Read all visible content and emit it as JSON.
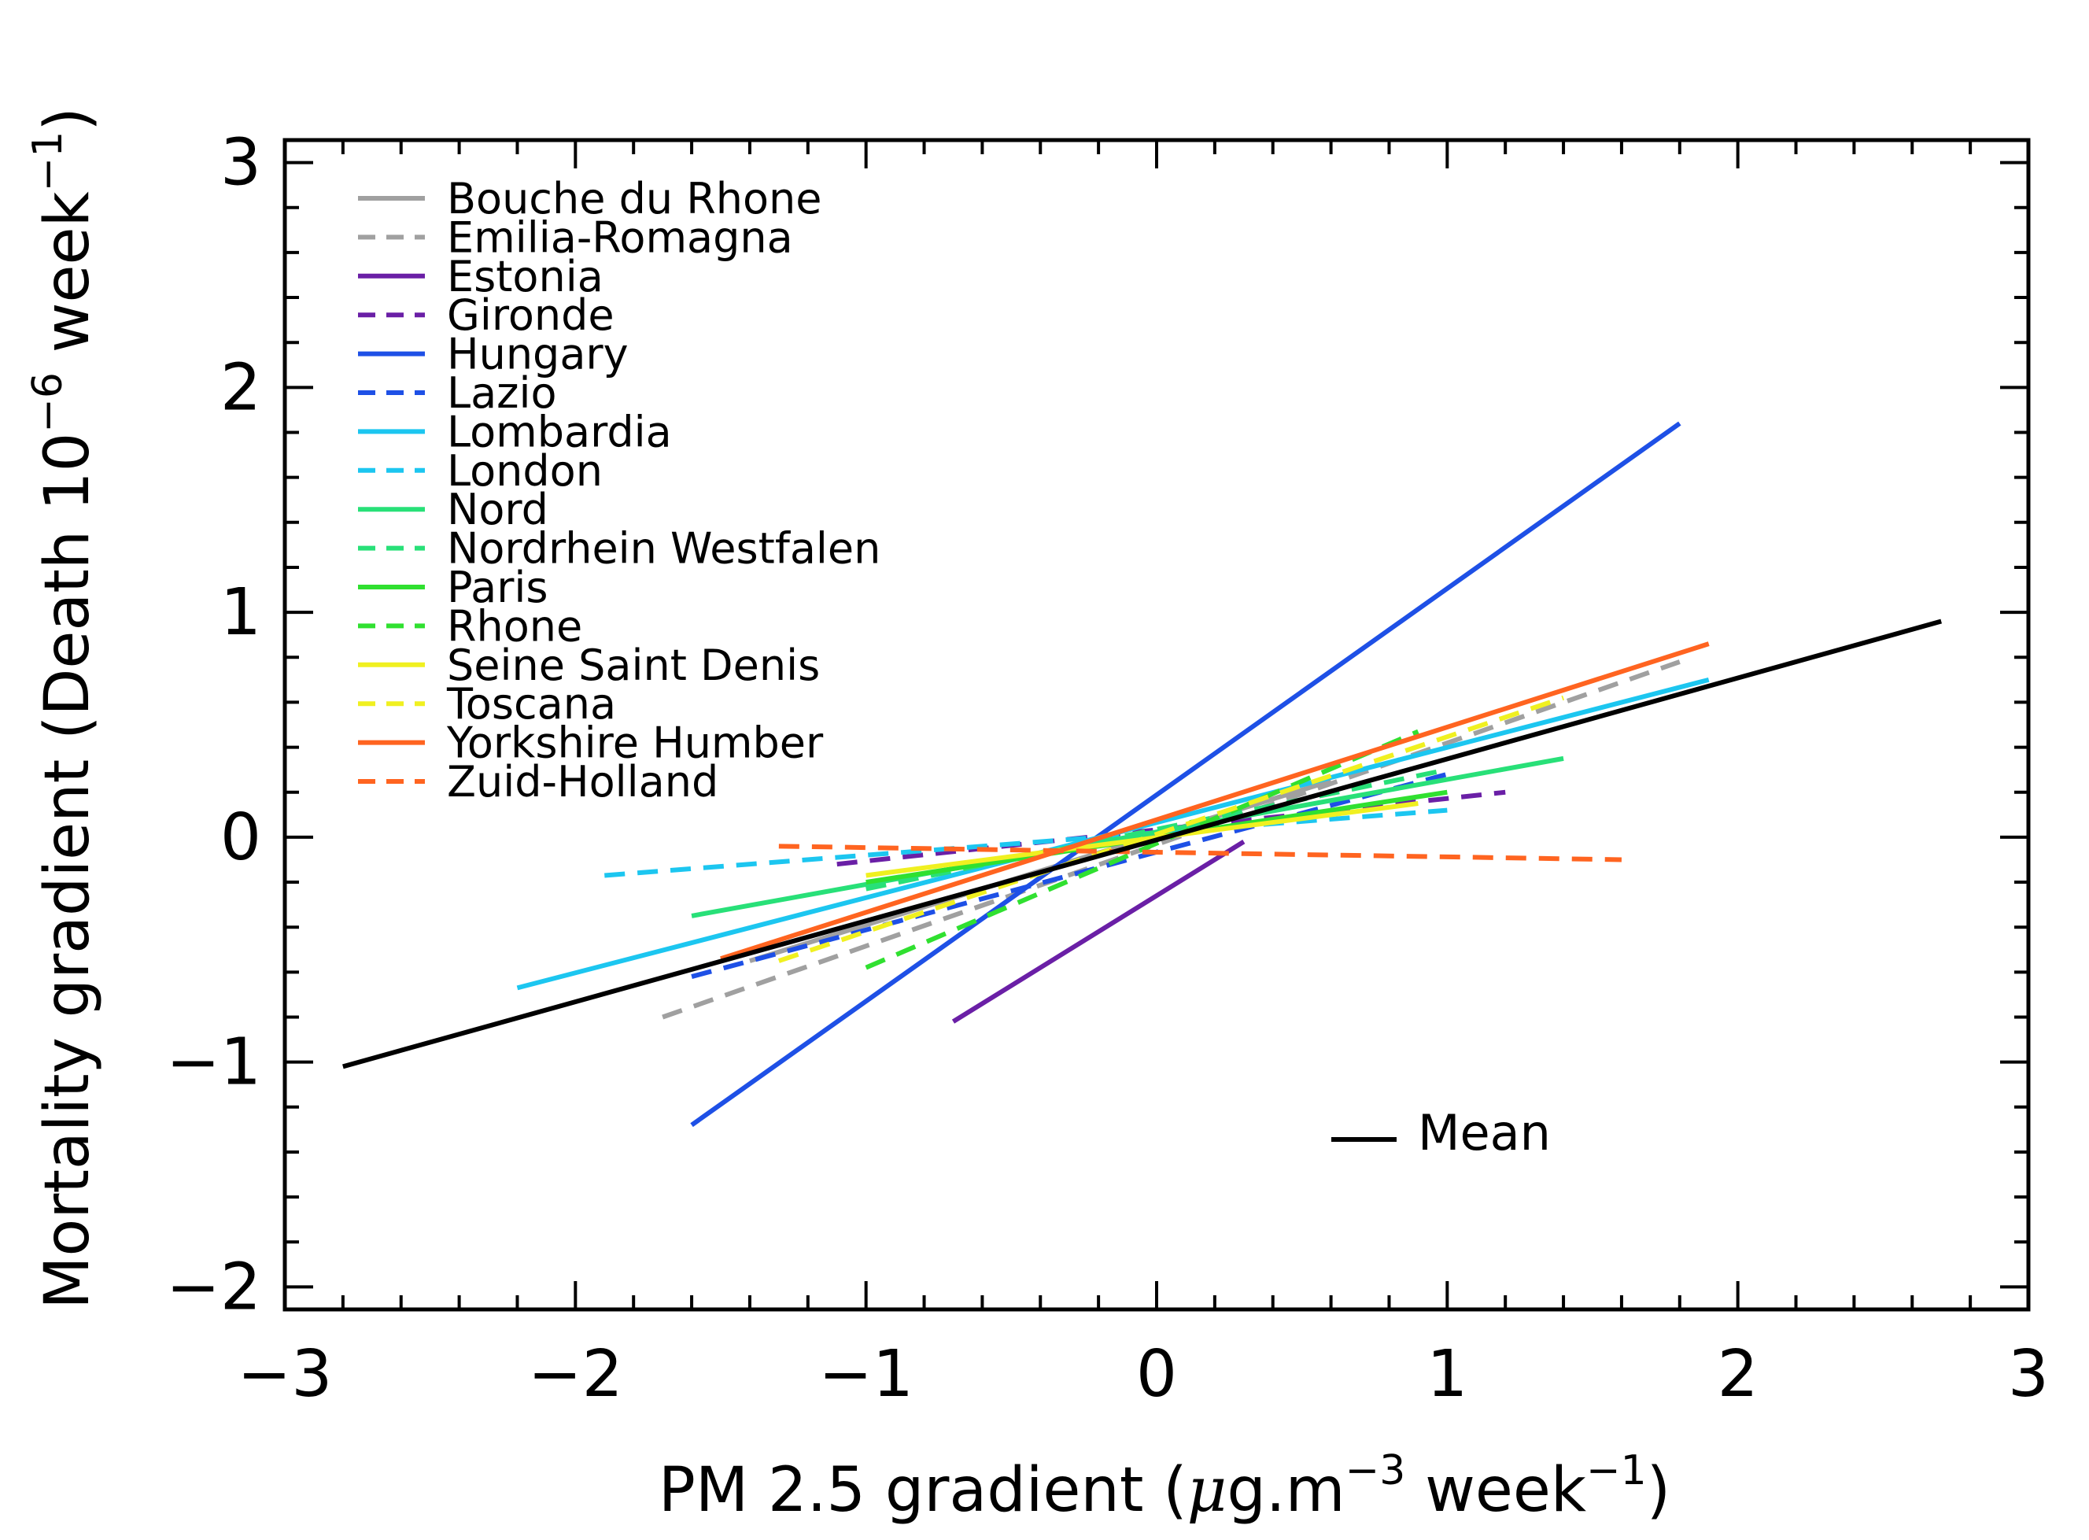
{
  "chart_data": {
    "type": "line",
    "title": "",
    "xlabel": "PM 2.5 gradient (μg.m⁻³ week⁻¹)",
    "xlabel_parts": {
      "prefix": "PM 2.5 gradient (",
      "mu": "μ",
      "unit": "g.m",
      "exp1": "−3",
      "mid": " week",
      "exp2": "−1",
      "suffix": ")"
    },
    "ylabel": "Mortality gradient (Death 10⁻⁶ week⁻¹)",
    "ylabel_parts": {
      "prefix": "Mortality gradient (Death 10",
      "exp1": "−6",
      "mid": " week",
      "exp2": "−1",
      "suffix": ")"
    },
    "xlim": [
      -3,
      3
    ],
    "ylim": [
      -2.1,
      3.1
    ],
    "xticks": [
      -3,
      -2,
      -1,
      0,
      1,
      2,
      3
    ],
    "xtick_labels": [
      "−3",
      "−2",
      "−1",
      "0",
      "1",
      "2",
      "3"
    ],
    "yticks": [
      -2,
      -1,
      0,
      1,
      2,
      3
    ],
    "ytick_labels": [
      "−2",
      "−1",
      "0",
      "1",
      "2",
      "3"
    ],
    "grid": false,
    "legend_position": "top-left",
    "series": [
      {
        "name": "Bouche du Rhone",
        "color": "#a0a0a0",
        "dash": "solid",
        "x": [
          -1.4,
          0.6
        ],
        "y": [
          -0.55,
          0.25
        ]
      },
      {
        "name": "Emilia-Romagna",
        "color": "#a0a0a0",
        "dash": "dashed",
        "x": [
          -1.7,
          1.8
        ],
        "y": [
          -0.8,
          0.78
        ]
      },
      {
        "name": "Estonia",
        "color": "#6a1fa6",
        "dash": "solid",
        "x": [
          -0.7,
          0.3
        ],
        "y": [
          -0.82,
          -0.02
        ]
      },
      {
        "name": "Gironde",
        "color": "#6a1fa6",
        "dash": "dashed",
        "x": [
          -1.1,
          1.2
        ],
        "y": [
          -0.12,
          0.2
        ]
      },
      {
        "name": "Hungary",
        "color": "#1e50e6",
        "dash": "solid",
        "x": [
          -1.6,
          1.8
        ],
        "y": [
          -1.28,
          1.84
        ]
      },
      {
        "name": "Lazio",
        "color": "#1e50e6",
        "dash": "dashed",
        "x": [
          -1.6,
          1.0
        ],
        "y": [
          -0.62,
          0.28
        ]
      },
      {
        "name": "Lombardia",
        "color": "#1cc6f0",
        "dash": "solid",
        "x": [
          -2.2,
          1.9
        ],
        "y": [
          -0.67,
          0.7
        ]
      },
      {
        "name": "London",
        "color": "#1cc6f0",
        "dash": "dashed",
        "x": [
          -1.9,
          1.0
        ],
        "y": [
          -0.17,
          0.12
        ]
      },
      {
        "name": "Nord",
        "color": "#28e078",
        "dash": "solid",
        "x": [
          -1.6,
          1.4
        ],
        "y": [
          -0.35,
          0.35
        ]
      },
      {
        "name": "Nordrhein Westfalen",
        "color": "#28e078",
        "dash": "dashed",
        "x": [
          -1.0,
          1.0
        ],
        "y": [
          -0.23,
          0.3
        ]
      },
      {
        "name": "Paris",
        "color": "#30e030",
        "dash": "solid",
        "x": [
          -1.0,
          1.0
        ],
        "y": [
          -0.2,
          0.2
        ]
      },
      {
        "name": "Rhone",
        "color": "#30e030",
        "dash": "dashed",
        "x": [
          -1.0,
          0.9
        ],
        "y": [
          -0.58,
          0.47
        ]
      },
      {
        "name": "Seine Saint Denis",
        "color": "#f0f020",
        "dash": "solid",
        "x": [
          -1.0,
          0.9
        ],
        "y": [
          -0.17,
          0.15
        ]
      },
      {
        "name": "Toscana",
        "color": "#f0f020",
        "dash": "dashed",
        "x": [
          -1.3,
          1.4
        ],
        "y": [
          -0.55,
          0.62
        ]
      },
      {
        "name": "Yorkshire Humber",
        "color": "#ff6420",
        "dash": "solid",
        "x": [
          -1.5,
          1.9
        ],
        "y": [
          -0.54,
          0.86
        ]
      },
      {
        "name": "Zuid-Holland",
        "color": "#ff6420",
        "dash": "dashed",
        "x": [
          -1.3,
          1.6
        ],
        "y": [
          -0.04,
          -0.1
        ]
      }
    ],
    "mean": {
      "name": "Mean",
      "color": "#000000",
      "x": [
        -2.8,
        2.7
      ],
      "y": [
        -1.02,
        0.96
      ]
    }
  }
}
